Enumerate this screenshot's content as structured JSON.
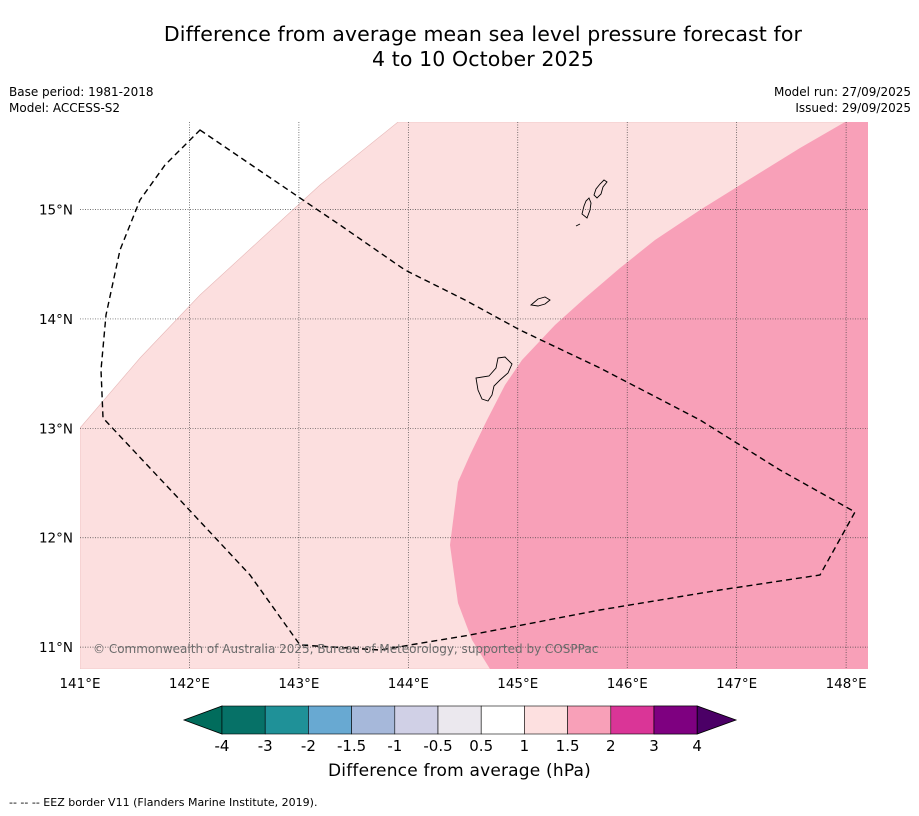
{
  "title": {
    "line1": "Difference from average mean sea level pressure forecast for",
    "line2": "4 to 10 October 2025"
  },
  "meta": {
    "base_period": "Base period: 1981-2018",
    "model": "Model: ACCESS-S2",
    "model_run": "Model run: 27/09/2025",
    "issued": "Issued: 29/09/2025"
  },
  "map": {
    "copyright": "© Commonwealth of Australia 2025, Bureau of Meteorology, supported by COSPPac",
    "lon_ticks": [
      141,
      142,
      143,
      144,
      145,
      146,
      147,
      148
    ],
    "lon_labels": [
      "141°E",
      "142°E",
      "143°E",
      "144°E",
      "145°E",
      "146°E",
      "147°E",
      "148°E"
    ],
    "lat_ticks": [
      11,
      12,
      13,
      14,
      15
    ],
    "lat_labels": [
      "11°N",
      "12°N",
      "13°N",
      "14°N",
      "15°N"
    ],
    "lon_range": [
      141,
      148.2
    ],
    "lat_range": [
      10.8,
      15.8
    ],
    "regions": [
      {
        "name": "anomaly-0.5-1",
        "value_range": [
          0.5,
          1
        ],
        "color": "#fcdfdf"
      },
      {
        "name": "anomaly-1-1.5",
        "value_range": [
          1,
          1.5
        ],
        "color": "#f8a0b8"
      }
    ],
    "eez_label": "EEZ border"
  },
  "colorbar": {
    "labels": [
      "-4",
      "-3",
      "-2",
      "-1.5",
      "-1",
      "-0.5",
      "0.5",
      "1",
      "1.5",
      "2",
      "3",
      "4"
    ],
    "colors": [
      "#067167",
      "#1f9198",
      "#68a9d2",
      "#a6b8da",
      "#d0d0e6",
      "#ebe8ee",
      "#ffffff",
      "#fde0e0",
      "#f8a0b8",
      "#da3597",
      "#aa0083",
      "#7e0080"
    ],
    "under_color": "#016c5c",
    "over_color": "#4b0066",
    "title": "Difference from average (hPa)"
  },
  "footer": {
    "legend": "--  --  -- EEZ border V11 (Flanders Marine Institute, 2019)."
  }
}
